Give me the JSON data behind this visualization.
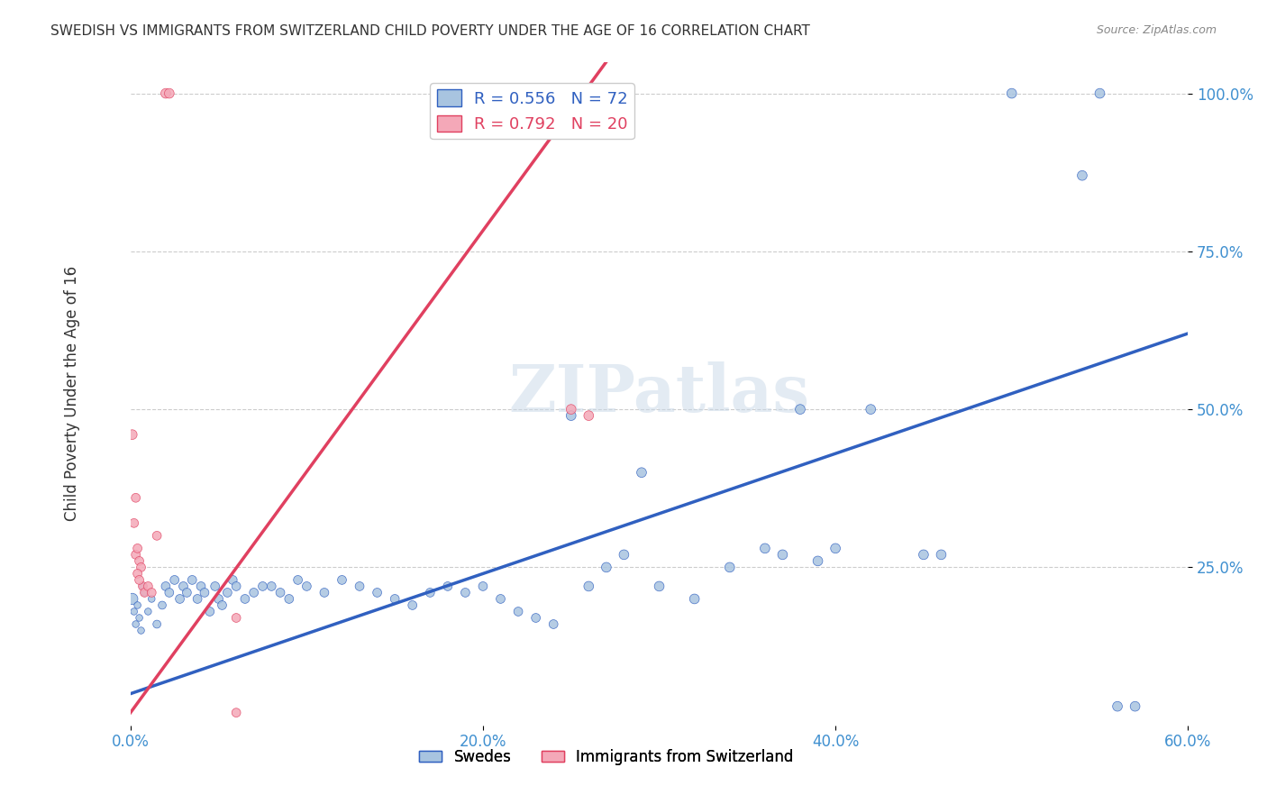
{
  "title": "SWEDISH VS IMMIGRANTS FROM SWITZERLAND CHILD POVERTY UNDER THE AGE OF 16 CORRELATION CHART",
  "source": "Source: ZipAtlas.com",
  "xlabel": "",
  "ylabel": "Child Poverty Under the Age of 16",
  "legend_label_blue": "Swedes",
  "legend_label_pink": "Immigrants from Switzerland",
  "r_blue": 0.556,
  "n_blue": 72,
  "r_pink": 0.792,
  "n_pink": 20,
  "xlim": [
    0.0,
    0.6
  ],
  "ylim": [
    0.0,
    1.05
  ],
  "xtick_labels": [
    "0.0%",
    "20.0%",
    "40.0%",
    "60.0%"
  ],
  "xtick_vals": [
    0.0,
    0.2,
    0.4,
    0.6
  ],
  "ytick_labels": [
    "25.0%",
    "50.0%",
    "75.0%",
    "100.0%"
  ],
  "ytick_vals": [
    0.25,
    0.5,
    0.75,
    1.0
  ],
  "color_blue": "#a8c4e0",
  "color_pink": "#f4a8b8",
  "line_color_blue": "#3060c0",
  "line_color_pink": "#e04060",
  "background_color": "#ffffff",
  "watermark": "ZIPatlas",
  "blue_points": [
    [
      0.001,
      0.2
    ],
    [
      0.002,
      0.18
    ],
    [
      0.003,
      0.16
    ],
    [
      0.004,
      0.19
    ],
    [
      0.005,
      0.17
    ],
    [
      0.006,
      0.15
    ],
    [
      0.007,
      0.22
    ],
    [
      0.008,
      0.21
    ],
    [
      0.01,
      0.18
    ],
    [
      0.012,
      0.2
    ],
    [
      0.015,
      0.16
    ],
    [
      0.018,
      0.19
    ],
    [
      0.02,
      0.22
    ],
    [
      0.022,
      0.21
    ],
    [
      0.025,
      0.23
    ],
    [
      0.028,
      0.2
    ],
    [
      0.03,
      0.22
    ],
    [
      0.032,
      0.21
    ],
    [
      0.035,
      0.23
    ],
    [
      0.038,
      0.2
    ],
    [
      0.04,
      0.22
    ],
    [
      0.042,
      0.21
    ],
    [
      0.045,
      0.18
    ],
    [
      0.048,
      0.22
    ],
    [
      0.05,
      0.2
    ],
    [
      0.052,
      0.19
    ],
    [
      0.055,
      0.21
    ],
    [
      0.058,
      0.23
    ],
    [
      0.06,
      0.22
    ],
    [
      0.065,
      0.2
    ],
    [
      0.07,
      0.21
    ],
    [
      0.075,
      0.22
    ],
    [
      0.08,
      0.22
    ],
    [
      0.085,
      0.21
    ],
    [
      0.09,
      0.2
    ],
    [
      0.095,
      0.23
    ],
    [
      0.1,
      0.22
    ],
    [
      0.11,
      0.21
    ],
    [
      0.12,
      0.23
    ],
    [
      0.13,
      0.22
    ],
    [
      0.14,
      0.21
    ],
    [
      0.15,
      0.2
    ],
    [
      0.16,
      0.19
    ],
    [
      0.17,
      0.21
    ],
    [
      0.18,
      0.22
    ],
    [
      0.19,
      0.21
    ],
    [
      0.2,
      0.22
    ],
    [
      0.21,
      0.2
    ],
    [
      0.22,
      0.18
    ],
    [
      0.23,
      0.17
    ],
    [
      0.24,
      0.16
    ],
    [
      0.25,
      0.49
    ],
    [
      0.26,
      0.22
    ],
    [
      0.27,
      0.25
    ],
    [
      0.28,
      0.27
    ],
    [
      0.29,
      0.4
    ],
    [
      0.3,
      0.22
    ],
    [
      0.32,
      0.2
    ],
    [
      0.34,
      0.25
    ],
    [
      0.36,
      0.28
    ],
    [
      0.37,
      0.27
    ],
    [
      0.38,
      0.5
    ],
    [
      0.39,
      0.26
    ],
    [
      0.4,
      0.28
    ],
    [
      0.42,
      0.5
    ],
    [
      0.45,
      0.27
    ],
    [
      0.46,
      0.27
    ],
    [
      0.5,
      1.0
    ],
    [
      0.54,
      0.87
    ],
    [
      0.55,
      1.0
    ],
    [
      0.56,
      0.03
    ],
    [
      0.57,
      0.03
    ]
  ],
  "blue_sizes": [
    80,
    30,
    30,
    30,
    30,
    30,
    30,
    30,
    30,
    30,
    40,
    40,
    50,
    50,
    50,
    50,
    50,
    50,
    50,
    50,
    50,
    50,
    50,
    50,
    50,
    50,
    50,
    50,
    50,
    50,
    50,
    50,
    50,
    50,
    50,
    50,
    50,
    50,
    50,
    50,
    50,
    50,
    50,
    50,
    50,
    50,
    50,
    50,
    50,
    50,
    50,
    60,
    60,
    60,
    60,
    60,
    60,
    60,
    60,
    60,
    60,
    60,
    60,
    60,
    60,
    60,
    60,
    60,
    60,
    60,
    60,
    60
  ],
  "pink_points": [
    [
      0.001,
      0.46
    ],
    [
      0.002,
      0.32
    ],
    [
      0.003,
      0.27
    ],
    [
      0.004,
      0.28
    ],
    [
      0.005,
      0.26
    ],
    [
      0.006,
      0.25
    ],
    [
      0.007,
      0.22
    ],
    [
      0.008,
      0.21
    ],
    [
      0.01,
      0.22
    ],
    [
      0.012,
      0.21
    ],
    [
      0.015,
      0.3
    ],
    [
      0.02,
      1.0
    ],
    [
      0.022,
      1.0
    ],
    [
      0.06,
      0.17
    ],
    [
      0.25,
      0.5
    ],
    [
      0.26,
      0.49
    ],
    [
      0.003,
      0.36
    ],
    [
      0.004,
      0.24
    ],
    [
      0.005,
      0.23
    ],
    [
      0.06,
      0.02
    ]
  ],
  "pink_sizes": [
    60,
    50,
    50,
    50,
    50,
    50,
    50,
    50,
    50,
    50,
    50,
    60,
    60,
    50,
    60,
    60,
    50,
    50,
    50,
    50
  ],
  "blue_line_x": [
    0.0,
    0.6
  ],
  "blue_line_y": [
    0.05,
    0.62
  ],
  "pink_line_x": [
    0.0,
    0.27
  ],
  "pink_line_y": [
    0.02,
    1.05
  ]
}
